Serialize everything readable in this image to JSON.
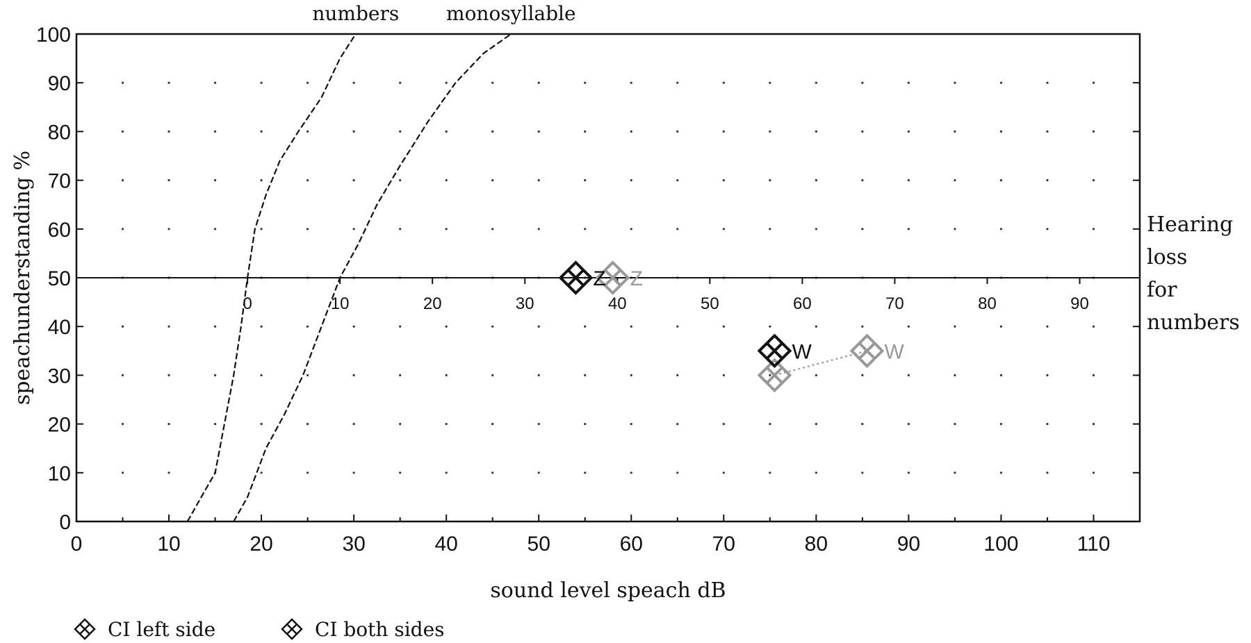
{
  "chart_data": {
    "type": "scatter",
    "xlabel": "sound level speach dB",
    "ylabel": "speachunderstanding %",
    "xlim": [
      0,
      115
    ],
    "ylim": [
      0,
      100
    ],
    "x_ticks": [
      0,
      10,
      20,
      30,
      40,
      50,
      60,
      70,
      80,
      90,
      100,
      110
    ],
    "y_ticks": [
      0,
      10,
      20,
      30,
      40,
      50,
      60,
      70,
      80,
      90,
      100
    ],
    "grid": "dotted",
    "hearing_loss_line": {
      "y": 50,
      "label_lines": [
        "Hearing",
        "loss",
        "for",
        "numbers"
      ],
      "offset_origin_x": 18.5,
      "ticks": [
        0,
        10,
        20,
        30,
        40,
        50,
        60,
        70,
        80,
        90
      ]
    },
    "reference_curves": [
      {
        "label": "numbers",
        "x": [
          12.0,
          13.5,
          15.0,
          16.0,
          17.0,
          17.8,
          18.5,
          19.3,
          20.5,
          22.0,
          24.0,
          26.5,
          28.5,
          30.2
        ],
        "y": [
          0,
          5,
          10,
          20,
          30,
          40,
          50,
          60,
          67,
          74,
          80,
          87,
          95,
          100
        ]
      },
      {
        "label": "monosyllable",
        "x": [
          17.0,
          18.5,
          20.5,
          22.5,
          24.5,
          26.5,
          28.5,
          30.5,
          32.5,
          35.0,
          38.0,
          41.0,
          44.0,
          47.0
        ],
        "y": [
          0,
          5,
          15,
          22,
          30,
          40,
          50,
          57,
          65,
          73,
          82,
          90,
          96,
          100
        ]
      }
    ],
    "series": [
      {
        "name": "CI left side",
        "color": "#999999",
        "points": [
          {
            "x": 58.0,
            "y": 50,
            "label": "Z"
          },
          {
            "x": 75.5,
            "y": 30,
            "label": ""
          },
          {
            "x": 85.5,
            "y": 35,
            "label": "W"
          }
        ],
        "connector": [
          [
            75.5,
            30
          ],
          [
            85.5,
            35
          ]
        ]
      },
      {
        "name": "CI both sides",
        "color": "#111111",
        "points": [
          {
            "x": 54.0,
            "y": 50,
            "label": "Z"
          },
          {
            "x": 75.5,
            "y": 35,
            "label": "W"
          }
        ]
      }
    ],
    "legend": {
      "placement": "bottom-left",
      "entries": [
        "CI left side",
        "CI both sides"
      ]
    }
  }
}
